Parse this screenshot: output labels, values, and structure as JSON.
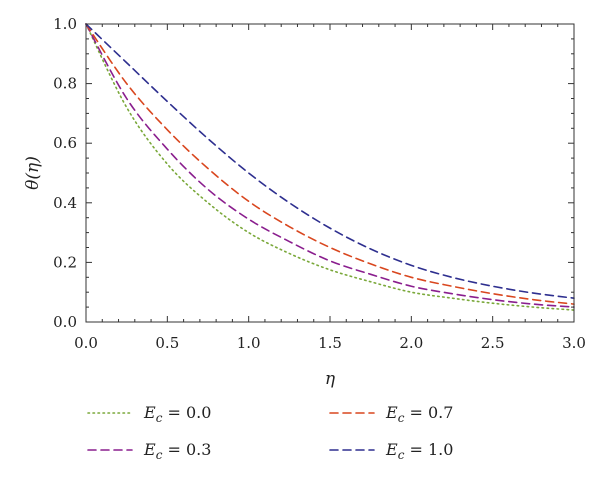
{
  "chart_data": {
    "type": "line",
    "title": "",
    "xlabel": "η",
    "ylabel": "θ(η)",
    "xlim": [
      0,
      3
    ],
    "ylim": [
      0,
      1
    ],
    "grid": false,
    "legend_position": "bottom",
    "x_ticks": [
      "0.0",
      "0.5",
      "1.0",
      "1.5",
      "2.0",
      "2.5",
      "3.0"
    ],
    "y_ticks": [
      "0.0",
      "0.2",
      "0.4",
      "0.6",
      "0.8",
      "1.0"
    ],
    "x": [
      0,
      0.25,
      0.5,
      0.75,
      1.0,
      1.25,
      1.5,
      1.75,
      2.0,
      2.25,
      2.5,
      2.75,
      3.0
    ],
    "series": [
      {
        "name": "E_c = 0.0",
        "label_main": "E",
        "label_sub": "c",
        "label_value": " = 0.0",
        "color": "#7aa83a",
        "dash": "dotted",
        "values": [
          1.0,
          0.72,
          0.53,
          0.4,
          0.3,
          0.23,
          0.175,
          0.135,
          0.1,
          0.08,
          0.063,
          0.05,
          0.04
        ]
      },
      {
        "name": "E_c = 0.3",
        "label_main": "E",
        "label_sub": "c",
        "label_value": " = 0.3",
        "color": "#8a1e8e",
        "dash": "dashed",
        "values": [
          1.0,
          0.75,
          0.58,
          0.445,
          0.345,
          0.27,
          0.205,
          0.16,
          0.12,
          0.095,
          0.075,
          0.06,
          0.05
        ]
      },
      {
        "name": "E_c = 0.7",
        "label_main": "E",
        "label_sub": "c",
        "label_value": " = 0.7",
        "color": "#d9471f",
        "dash": "dashed",
        "values": [
          1.0,
          0.8,
          0.645,
          0.515,
          0.405,
          0.32,
          0.25,
          0.195,
          0.15,
          0.12,
          0.095,
          0.075,
          0.06
        ]
      },
      {
        "name": "E_c = 1.0",
        "label_main": "E",
        "label_sub": "c",
        "label_value": " = 1.0",
        "color": "#2e2f8f",
        "dash": "dashed",
        "values": [
          1.0,
          0.87,
          0.74,
          0.615,
          0.5,
          0.4,
          0.315,
          0.245,
          0.19,
          0.15,
          0.12,
          0.097,
          0.08
        ]
      }
    ]
  }
}
